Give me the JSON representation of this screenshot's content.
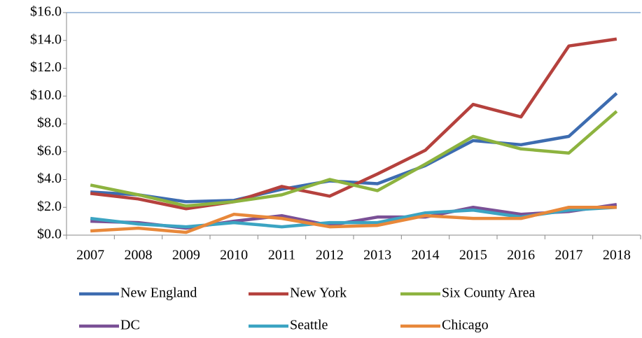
{
  "chart_data": {
    "type": "line",
    "categories": [
      "2007",
      "2008",
      "2009",
      "2010",
      "2011",
      "2012",
      "2013",
      "2014",
      "2015",
      "2016",
      "2017",
      "2018"
    ],
    "series": [
      {
        "name": "New England",
        "color": "#3d6cb0",
        "values": [
          3.1,
          2.9,
          2.4,
          2.5,
          3.3,
          3.9,
          3.7,
          5.0,
          6.8,
          6.5,
          7.1,
          10.2
        ]
      },
      {
        "name": "New York",
        "color": "#b5413d",
        "values": [
          3.0,
          2.6,
          1.9,
          2.4,
          3.5,
          2.8,
          4.4,
          6.1,
          9.4,
          8.5,
          13.6,
          14.1
        ]
      },
      {
        "name": "Six County Area",
        "color": "#8db33f",
        "values": [
          3.6,
          2.9,
          2.1,
          2.4,
          2.9,
          4.0,
          3.2,
          5.1,
          7.1,
          6.2,
          5.9,
          8.9
        ]
      },
      {
        "name": "DC",
        "color": "#7a5096",
        "values": [
          1.0,
          0.9,
          0.5,
          1.0,
          1.4,
          0.7,
          1.3,
          1.3,
          2.0,
          1.5,
          1.7,
          2.2
        ]
      },
      {
        "name": "Seattle",
        "color": "#3ba4c2",
        "values": [
          1.2,
          0.8,
          0.6,
          0.9,
          0.6,
          0.9,
          0.9,
          1.6,
          1.8,
          1.3,
          1.8,
          2.0
        ]
      },
      {
        "name": "Chicago",
        "color": "#e8883a",
        "values": [
          0.3,
          0.5,
          0.2,
          1.5,
          1.2,
          0.6,
          0.7,
          1.4,
          1.2,
          1.2,
          2.0,
          2.0
        ]
      }
    ],
    "ylim": [
      0,
      16
    ],
    "yticks": [
      {
        "value": 0,
        "label": "$0.0"
      },
      {
        "value": 2,
        "label": "$2.0"
      },
      {
        "value": 4,
        "label": "$4.0"
      },
      {
        "value": 6,
        "label": "$6.0"
      },
      {
        "value": 8,
        "label": "$8.0"
      },
      {
        "value": 10,
        "label": "$10.0"
      },
      {
        "value": 12,
        "label": "$12.0"
      },
      {
        "value": 14,
        "label": "$14.0"
      },
      {
        "value": 16,
        "label": "$16.0"
      }
    ],
    "grid": false,
    "legend": "bottom"
  }
}
